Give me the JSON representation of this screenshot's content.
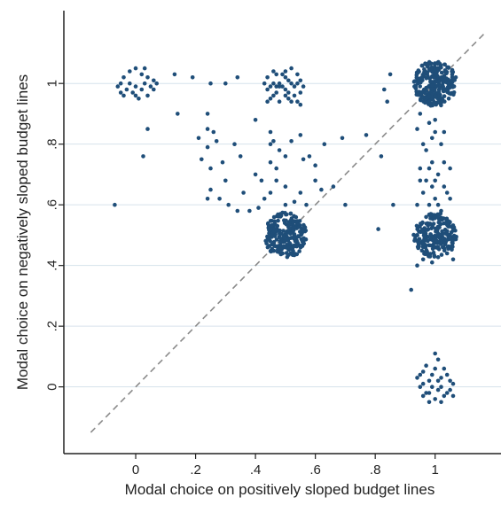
{
  "chart_data": {
    "type": "scatter",
    "xlabel": "Modal choice on positively sloped budget lines",
    "ylabel": "Modal choice on negatively sloped budget lines",
    "xlim": [
      -0.24,
      1.22
    ],
    "ylim": [
      -0.22,
      1.24
    ],
    "xticks": [
      0,
      0.2,
      0.4,
      0.6,
      0.8,
      1
    ],
    "yticks": [
      0,
      0.2,
      0.4,
      0.6,
      0.8,
      1
    ],
    "xtick_labels": [
      "0",
      ".2",
      ".4",
      ".6",
      ".8",
      "1"
    ],
    "ytick_labels": [
      "0",
      ".2",
      ".4",
      ".6",
      ".8",
      "1"
    ],
    "grid": "horizontal",
    "reference_line": "45-degree dashed",
    "colors": {
      "points": "#1f4e79",
      "grid": "#d6e2ec",
      "reference": "#8a8a8a",
      "axis": "#222222"
    },
    "series": [
      {
        "points": [
          [
            0.0,
            1.05
          ],
          [
            -0.04,
            1.02
          ],
          [
            -0.02,
            1.04
          ],
          [
            0.02,
            1.03
          ],
          [
            0.04,
            1.02
          ],
          [
            0.06,
            1.01
          ],
          [
            -0.06,
            0.99
          ],
          [
            -0.05,
            0.97
          ],
          [
            -0.03,
            0.98
          ],
          [
            0.0,
            0.99
          ],
          [
            0.02,
            0.98
          ],
          [
            0.05,
            0.99
          ],
          [
            0.07,
            1.0
          ],
          [
            0.03,
            1.0
          ],
          [
            -0.01,
            0.97
          ],
          [
            -0.04,
            0.96
          ],
          [
            0.01,
            0.95
          ],
          [
            0.04,
            0.96
          ],
          [
            0.06,
            0.98
          ],
          [
            -0.02,
            1.0
          ],
          [
            0.0,
            0.96
          ],
          [
            0.03,
            1.05
          ],
          [
            -0.05,
            1.0
          ],
          [
            0.13,
            1.03
          ],
          [
            0.19,
            1.02
          ],
          [
            0.25,
            1.0
          ],
          [
            0.34,
            1.02
          ],
          [
            0.3,
            1.0
          ],
          [
            0.04,
            0.85
          ],
          [
            0.14,
            0.9
          ],
          [
            0.24,
            0.9
          ],
          [
            0.025,
            0.76
          ],
          [
            0.21,
            0.82
          ],
          [
            0.24,
            0.85
          ],
          [
            0.24,
            0.79
          ],
          [
            0.26,
            0.84
          ],
          [
            0.27,
            0.81
          ],
          [
            0.22,
            0.75
          ],
          [
            0.25,
            0.72
          ],
          [
            0.29,
            0.74
          ],
          [
            0.33,
            0.8
          ],
          [
            0.35,
            0.76
          ],
          [
            0.3,
            0.68
          ],
          [
            0.25,
            0.65
          ],
          [
            0.24,
            0.62
          ],
          [
            0.28,
            0.62
          ],
          [
            0.31,
            0.6
          ],
          [
            0.36,
            0.64
          ],
          [
            0.4,
            0.7
          ],
          [
            0.42,
            0.68
          ],
          [
            0.43,
            0.62
          ],
          [
            0.45,
            0.64
          ],
          [
            0.41,
            0.59
          ],
          [
            0.38,
            0.58
          ],
          [
            0.34,
            0.58
          ],
          [
            0.47,
            0.68
          ],
          [
            0.5,
            0.66
          ],
          [
            0.5,
            0.6
          ],
          [
            0.53,
            0.61
          ],
          [
            0.55,
            0.64
          ],
          [
            0.57,
            0.6
          ],
          [
            0.6,
            0.68
          ],
          [
            0.62,
            0.65
          ],
          [
            0.66,
            0.66
          ],
          [
            0.7,
            0.6
          ],
          [
            0.6,
            0.73
          ],
          [
            0.58,
            0.76
          ],
          [
            0.56,
            0.75
          ],
          [
            0.63,
            0.8
          ],
          [
            0.69,
            0.82
          ],
          [
            0.77,
            0.83
          ],
          [
            0.4,
            0.88
          ],
          [
            0.45,
            0.84
          ],
          [
            0.52,
            0.81
          ],
          [
            0.45,
            0.8
          ],
          [
            0.46,
            0.81
          ],
          [
            0.48,
            0.78
          ],
          [
            0.45,
            0.74
          ],
          [
            0.5,
            0.76
          ],
          [
            0.47,
            0.72
          ],
          [
            0.55,
            0.83
          ],
          [
            -0.07,
            0.6
          ],
          [
            0.44,
            1.02
          ],
          [
            0.46,
            1.04
          ],
          [
            0.48,
            1.0
          ],
          [
            0.5,
            1.02
          ],
          [
            0.52,
            1.05
          ],
          [
            0.54,
            1.03
          ],
          [
            0.44,
            0.98
          ],
          [
            0.47,
            0.97
          ],
          [
            0.5,
            0.98
          ],
          [
            0.53,
            0.99
          ],
          [
            0.55,
            0.97
          ],
          [
            0.45,
            0.95
          ],
          [
            0.48,
            0.94
          ],
          [
            0.51,
            0.95
          ],
          [
            0.54,
            0.94
          ],
          [
            0.46,
            1.0
          ],
          [
            0.49,
            1.03
          ],
          [
            0.52,
            1.0
          ],
          [
            0.55,
            1.01
          ],
          [
            0.47,
            1.03
          ],
          [
            0.43,
            1.0
          ],
          [
            0.5,
            0.96
          ],
          [
            0.56,
            0.99
          ],
          [
            0.49,
            0.99
          ],
          [
            0.53,
            0.96
          ],
          [
            0.46,
            0.96
          ],
          [
            0.51,
            1.01
          ],
          [
            0.44,
            0.94
          ],
          [
            0.55,
            0.93
          ],
          [
            0.5,
            1.04
          ],
          [
            0.48,
            0.99
          ],
          [
            0.52,
            0.94
          ],
          [
            0.47,
            0.99
          ],
          [
            0.54,
            1.0
          ],
          [
            0.45,
            0.99
          ],
          [
            0.51,
            0.97
          ],
          [
            0.83,
            0.98
          ],
          [
            0.84,
            0.94
          ],
          [
            0.85,
            1.03
          ],
          [
            0.82,
            0.76
          ],
          [
            0.81,
            0.52
          ],
          [
            0.92,
            0.32
          ],
          [
            0.86,
            0.6
          ],
          [
            0.94,
            0.85
          ],
          [
            0.96,
            0.8
          ],
          [
            0.98,
            0.87
          ],
          [
            1.0,
            0.84
          ],
          [
            1.02,
            0.8
          ],
          [
            0.95,
            0.9
          ],
          [
            0.97,
            0.78
          ],
          [
            1.0,
            0.88
          ],
          [
            1.03,
            0.84
          ],
          [
            0.99,
            0.82
          ],
          [
            0.95,
            0.72
          ],
          [
            0.97,
            0.68
          ],
          [
            0.99,
            0.74
          ],
          [
            1.01,
            0.7
          ],
          [
            1.03,
            0.66
          ],
          [
            1.05,
            0.72
          ],
          [
            0.96,
            0.64
          ],
          [
            0.98,
            0.6
          ],
          [
            1.0,
            0.62
          ],
          [
            1.02,
            0.58
          ],
          [
            1.04,
            0.64
          ],
          [
            0.94,
            0.6
          ],
          [
            0.97,
            0.56
          ],
          [
            1.0,
            0.68
          ],
          [
            1.03,
            0.74
          ],
          [
            1.05,
            0.62
          ],
          [
            0.99,
            0.66
          ],
          [
            1.01,
            0.6
          ],
          [
            0.95,
            0.68
          ],
          [
            0.98,
            0.72
          ],
          [
            0.94,
            0.4
          ],
          [
            0.96,
            0.42
          ],
          [
            1.06,
            0.42
          ],
          [
            1.04,
            0.44
          ],
          [
            0.99,
            0.41
          ],
          [
            0.94,
            0.03
          ],
          [
            0.96,
            0.05
          ],
          [
            0.98,
            0.02
          ],
          [
            1.0,
            0.06
          ],
          [
            1.02,
            0.03
          ],
          [
            1.04,
            0.04
          ],
          [
            1.06,
            0.01
          ],
          [
            0.95,
            0.0
          ],
          [
            0.97,
            -0.02
          ],
          [
            0.99,
            0.0
          ],
          [
            1.01,
            -0.01
          ],
          [
            1.03,
            -0.03
          ],
          [
            1.05,
            -0.01
          ],
          [
            0.96,
            -0.03
          ],
          [
            0.98,
            -0.05
          ],
          [
            1.0,
            -0.04
          ],
          [
            1.02,
            -0.05
          ],
          [
            1.04,
            -0.02
          ],
          [
            1.06,
            -0.03
          ],
          [
            0.97,
            0.07
          ],
          [
            1.01,
            0.09
          ],
          [
            1.03,
            0.06
          ],
          [
            0.99,
            0.04
          ],
          [
            1.0,
            0.11
          ],
          [
            0.95,
            0.04
          ],
          [
            1.02,
            0.0
          ],
          [
            0.98,
            -0.02
          ],
          [
            1.05,
            0.02
          ],
          [
            0.96,
            0.01
          ],
          [
            1.01,
            0.02
          ]
        ],
        "clusters": [
          {
            "cx": 1.0,
            "cy": 1.0,
            "rx": 0.072,
            "ry": 0.075,
            "n": 260
          },
          {
            "cx": 1.0,
            "cy": 0.5,
            "rx": 0.072,
            "ry": 0.075,
            "n": 210
          },
          {
            "cx": 0.5,
            "cy": 0.5,
            "rx": 0.072,
            "ry": 0.075,
            "n": 230
          }
        ]
      }
    ]
  }
}
